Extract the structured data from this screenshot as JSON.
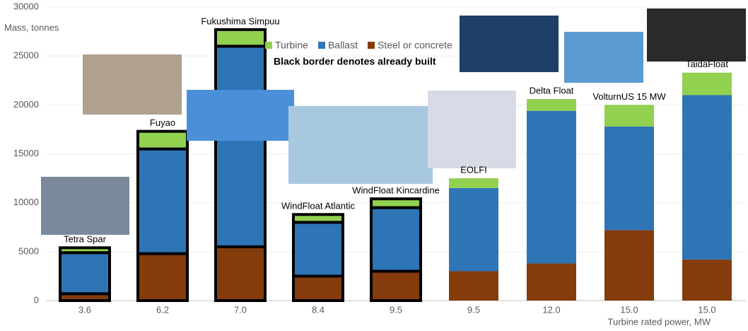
{
  "chart_data": {
    "type": "bar",
    "stacked": true,
    "y_label": "Mass, tonnes",
    "x_label": "Turbine rated power, MW",
    "note": "Black border denotes already built",
    "categories": [
      "3.6",
      "6.2",
      "7.0",
      "8.4",
      "9.5",
      "9.5",
      "12.0",
      "15.0",
      "15.0"
    ],
    "bar_labels": [
      "Tetra Spar",
      "Fuyao",
      "Fukushima Simpuu",
      "WindFloat Atlantic",
      "WindFloat Kincardine",
      "EOLFI",
      "Delta Float",
      "VolturnUS 15 MW",
      "TaidaFloat"
    ],
    "outlined": [
      true,
      true,
      true,
      true,
      true,
      false,
      false,
      false,
      false
    ],
    "series": [
      {
        "name": "Steel or concrete",
        "color": "#843c0c",
        "values": [
          700,
          4800,
          5500,
          2500,
          3000,
          3000,
          3800,
          7200,
          4200
        ]
      },
      {
        "name": "Ballast",
        "color": "#2e75b6",
        "values": [
          4200,
          10700,
          20500,
          5500,
          6500,
          8500,
          15600,
          10600,
          16800
        ]
      },
      {
        "name": "Turbine",
        "color": "#92d050",
        "values": [
          500,
          1800,
          1700,
          800,
          900,
          1000,
          1200,
          2200,
          2300
        ]
      }
    ],
    "ylim": [
      0,
      30000
    ],
    "yticks": [
      0,
      5000,
      10000,
      15000,
      20000,
      25000,
      30000
    ],
    "grid": true
  }
}
